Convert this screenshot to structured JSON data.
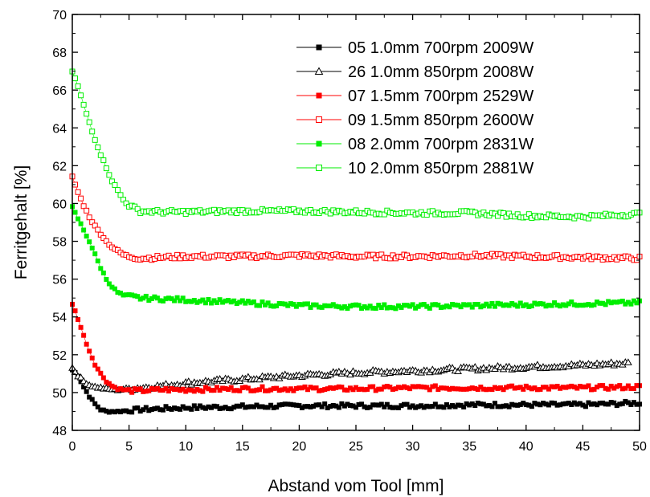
{
  "chart_data": {
    "type": "scatter",
    "xlabel": "Abstand vom Tool [mm]",
    "ylabel": "Ferritgehalt [%]",
    "xlim": [
      0,
      50
    ],
    "ylim": [
      48,
      70
    ],
    "xticks": [
      "0",
      "5",
      "10",
      "15",
      "20",
      "25",
      "30",
      "35",
      "40",
      "45",
      "50"
    ],
    "yticks": [
      "48",
      "50",
      "52",
      "54",
      "56",
      "58",
      "60",
      "62",
      "64",
      "66",
      "68",
      "70"
    ],
    "grid": false,
    "legend_position": "top-right",
    "series": [
      {
        "name": "05 1.0mm 700rpm 2009W",
        "color": "#000000",
        "marker": "square-filled",
        "x": [
          0,
          0.5,
          1,
          1.5,
          2,
          2.5,
          3,
          4,
          5,
          6,
          8,
          10,
          15,
          20,
          25,
          30,
          35,
          40,
          45,
          50
        ],
        "y": [
          51.2,
          50.9,
          50.3,
          49.8,
          49.4,
          49.1,
          49.0,
          49.0,
          49.05,
          49.1,
          49.15,
          49.2,
          49.25,
          49.3,
          49.3,
          49.3,
          49.35,
          49.35,
          49.35,
          49.45
        ]
      },
      {
        "name": "26 1.0mm 850rpm 2008W",
        "color": "#000000",
        "marker": "triangle-open",
        "x": [
          0,
          0.5,
          1,
          1.5,
          2,
          3,
          4,
          5,
          6,
          8,
          10,
          15,
          20,
          25,
          30,
          35,
          40,
          45,
          49
        ],
        "y": [
          51.3,
          50.9,
          50.6,
          50.4,
          50.3,
          50.2,
          50.15,
          50.2,
          50.25,
          50.35,
          50.5,
          50.7,
          50.9,
          51.05,
          51.15,
          51.25,
          51.35,
          51.45,
          51.55
        ]
      },
      {
        "name": "07 1.5mm 700rpm 2529W",
        "color": "#ff0000",
        "marker": "square-filled",
        "x": [
          0,
          0.5,
          1,
          1.5,
          2,
          2.5,
          3,
          3.5,
          4,
          5,
          6,
          8,
          10,
          15,
          20,
          25,
          30,
          35,
          40,
          45,
          50
        ],
        "y": [
          54.7,
          53.9,
          53.0,
          52.2,
          51.5,
          51.0,
          50.6,
          50.35,
          50.2,
          50.1,
          50.1,
          50.15,
          50.15,
          50.2,
          50.2,
          50.2,
          50.25,
          50.25,
          50.25,
          50.25,
          50.3
        ]
      },
      {
        "name": "09 1.5mm 850rpm 2600W",
        "color": "#ff0000",
        "marker": "square-open",
        "x": [
          0,
          0.5,
          1,
          1.5,
          2,
          2.5,
          3,
          3.5,
          4,
          4.5,
          5,
          6,
          8,
          10,
          15,
          20,
          25,
          30,
          35,
          40,
          45,
          50
        ],
        "y": [
          61.4,
          60.6,
          59.9,
          59.3,
          58.8,
          58.4,
          58.0,
          57.7,
          57.5,
          57.3,
          57.2,
          57.1,
          57.15,
          57.2,
          57.2,
          57.25,
          57.2,
          57.2,
          57.25,
          57.2,
          57.15,
          57.1
        ]
      },
      {
        "name": "08 2.0mm 700rpm 2831W",
        "color": "#00ee00",
        "marker": "square-filled",
        "x": [
          0,
          0.5,
          1,
          1.5,
          2,
          2.5,
          3,
          3.5,
          4,
          4.5,
          5,
          6,
          8,
          10,
          15,
          20,
          25,
          30,
          35,
          40,
          45,
          50
        ],
        "y": [
          59.8,
          59.2,
          58.6,
          58.0,
          57.3,
          56.6,
          56.0,
          55.6,
          55.3,
          55.15,
          55.1,
          55.0,
          54.95,
          54.9,
          54.75,
          54.6,
          54.55,
          54.55,
          54.6,
          54.65,
          54.7,
          54.75
        ]
      },
      {
        "name": "10 2.0mm 850rpm 2881W",
        "color": "#00ee00",
        "marker": "square-open",
        "x": [
          0,
          0.5,
          1,
          1.5,
          2,
          2.5,
          3,
          3.5,
          4,
          4.5,
          5,
          6,
          8,
          10,
          15,
          20,
          25,
          30,
          35,
          40,
          45,
          50
        ],
        "y": [
          67.0,
          66.2,
          65.2,
          64.3,
          63.4,
          62.6,
          61.9,
          61.2,
          60.7,
          60.2,
          59.9,
          59.6,
          59.55,
          59.55,
          59.6,
          59.6,
          59.55,
          59.5,
          59.5,
          59.35,
          59.3,
          59.45
        ]
      }
    ]
  }
}
